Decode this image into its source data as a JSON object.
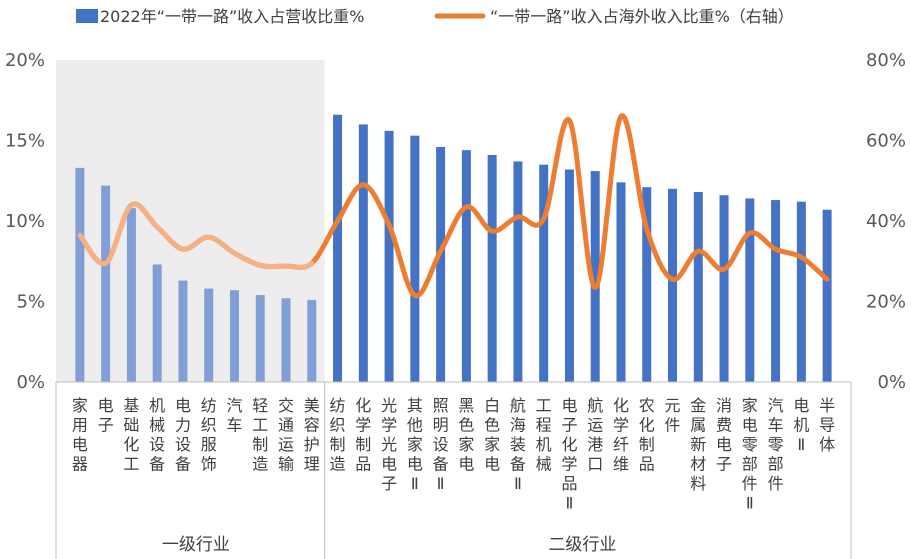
{
  "chart_data": {
    "type": "bar",
    "categories": [
      "家用电器",
      "电子",
      "基础化工",
      "机械设备",
      "电力设备",
      "纺织服饰",
      "汽车",
      "轻工制造",
      "交通运输",
      "美容护理",
      "纺织制造",
      "化学制品",
      "光学光电子",
      "其他家电Ⅱ",
      "照明设备Ⅱ",
      "黑色家电",
      "白色家电",
      "航海装备Ⅱ",
      "工程机械",
      "电子化学品Ⅱ",
      "航运港口",
      "化学纤维",
      "农化制品",
      "元件",
      "金属新材料",
      "消费电子",
      "家电零部件Ⅱ",
      "汽车零部件",
      "电机Ⅱ",
      "半导体"
    ],
    "groups": [
      {
        "name": "一级行业",
        "start": 0,
        "end": 9
      },
      {
        "name": "二级行业",
        "start": 10,
        "end": 29
      }
    ],
    "series": [
      {
        "name": "2022年“一带一路”收入占营收比重%",
        "type": "bar",
        "axis": "left",
        "color": "#4472C4",
        "light_color": "#7F9FD6",
        "values": [
          13.3,
          12.2,
          10.8,
          7.3,
          6.3,
          5.8,
          5.7,
          5.4,
          5.2,
          5.1,
          16.6,
          16.0,
          15.6,
          15.3,
          14.6,
          14.4,
          14.1,
          13.7,
          13.5,
          13.2,
          13.1,
          12.4,
          12.1,
          12.0,
          11.8,
          11.6,
          11.4,
          11.3,
          11.2,
          10.7
        ]
      },
      {
        "name": "“一带一路”收入占海外收入比重%（右轴）",
        "type": "line",
        "axis": "right",
        "color": "#ED7D31",
        "values": [
          36.5,
          29.5,
          44.0,
          38.5,
          33.0,
          36.0,
          32.0,
          29.0,
          28.8,
          29.5,
          40.0,
          49.0,
          39.0,
          21.5,
          32.5,
          43.5,
          37.5,
          41.0,
          40.5,
          65.0,
          23.5,
          66.0,
          38.0,
          25.5,
          32.5,
          28.0,
          37.0,
          33.0,
          31.0,
          25.5
        ]
      }
    ],
    "y_left": {
      "min": 0,
      "max": 20,
      "ticks": [
        "0%",
        "5%",
        "10%",
        "15%",
        "20%"
      ]
    },
    "y_right": {
      "min": 0,
      "max": 80,
      "ticks": [
        "0%",
        "20%",
        "40%",
        "60%",
        "80%"
      ]
    },
    "legend_position": "top",
    "grid": false
  }
}
